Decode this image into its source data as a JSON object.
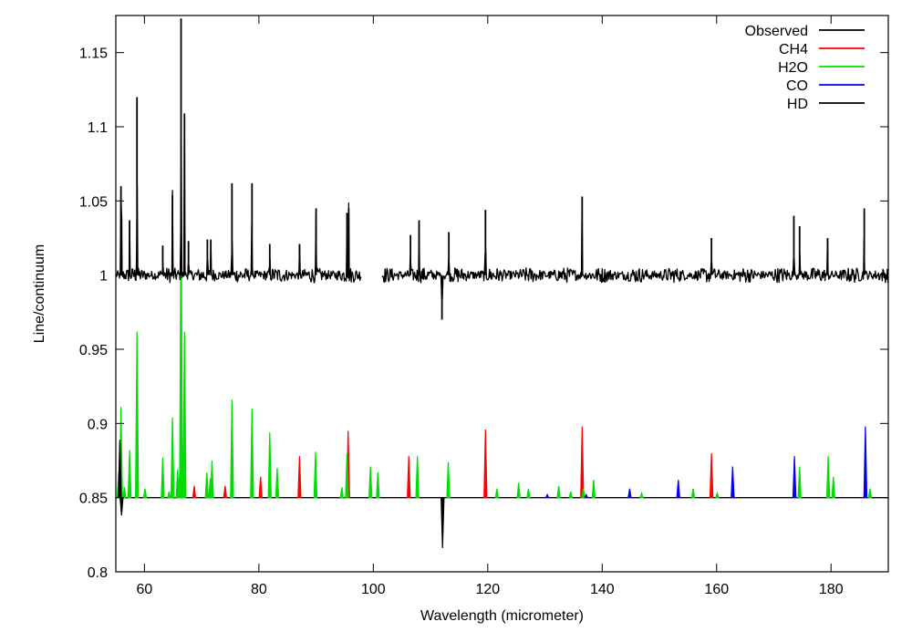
{
  "chart_data": {
    "type": "line",
    "xlabel": "Wavelength (micrometer)",
    "ylabel": "Line/continuum",
    "xlim": [
      55,
      190
    ],
    "ylim": [
      0.8,
      1.175
    ],
    "xticks": [
      60,
      80,
      100,
      120,
      140,
      160,
      180
    ],
    "xtick_labels": [
      "60",
      "80",
      "100",
      "120",
      "140",
      "160",
      "180"
    ],
    "yticks": [
      0.8,
      0.85,
      0.9,
      0.95,
      1.0,
      1.05,
      1.1,
      1.15
    ],
    "ytick_labels": [
      "0.8",
      "0.85",
      "0.9",
      "0.95",
      "1",
      "1.05",
      "1.1",
      "1.15"
    ],
    "grid": false,
    "legend_position": "top-right",
    "model_baseline": 0.85,
    "series": [
      {
        "name": "Observed",
        "color": "#000000",
        "kind": "spectrum",
        "baseline": 1.0,
        "noise_amplitude": 0.004,
        "segments": [
          [
            55,
            98
          ],
          [
            101.5,
            190
          ]
        ],
        "peaks": [
          [
            55.9,
            1.06
          ],
          [
            56.0,
            1.04
          ],
          [
            57.4,
            1.037
          ],
          [
            58.7,
            1.12
          ],
          [
            63.2,
            1.02
          ],
          [
            64.9,
            1.054
          ],
          [
            66.4,
            1.173
          ],
          [
            67.0,
            1.109
          ],
          [
            67.7,
            1.023
          ],
          [
            71.0,
            1.024
          ],
          [
            71.6,
            1.024
          ],
          [
            75.3,
            1.062
          ],
          [
            78.8,
            1.062
          ],
          [
            81.9,
            1.021
          ],
          [
            87.1,
            1.021
          ],
          [
            90.0,
            1.045
          ],
          [
            95.4,
            1.042
          ],
          [
            95.7,
            1.045
          ],
          [
            106.5,
            1.027
          ],
          [
            108.0,
            1.037
          ],
          [
            113.2,
            1.029
          ],
          [
            119.6,
            1.044
          ],
          [
            136.5,
            1.053
          ],
          [
            159.1,
            1.025
          ],
          [
            173.5,
            1.04
          ],
          [
            174.5,
            1.033
          ],
          [
            179.4,
            1.025
          ],
          [
            185.8,
            1.045
          ]
        ],
        "dips": [
          [
            112.0,
            0.97
          ]
        ]
      },
      {
        "name": "CH4",
        "color": "#ff0000",
        "kind": "lines",
        "lines": [
          [
            68.7,
            0.858
          ],
          [
            74.1,
            0.858
          ],
          [
            80.3,
            0.864
          ],
          [
            87.1,
            0.878
          ],
          [
            95.6,
            0.895
          ],
          [
            106.2,
            0.878
          ],
          [
            119.6,
            0.896
          ],
          [
            136.5,
            0.898
          ],
          [
            159.1,
            0.88
          ]
        ]
      },
      {
        "name": "H2O",
        "color": "#00dd00",
        "kind": "lines",
        "lines": [
          [
            55.5,
            0.867
          ],
          [
            55.9,
            0.911
          ],
          [
            56.5,
            0.857
          ],
          [
            57.4,
            0.882
          ],
          [
            58.7,
            0.962
          ],
          [
            60.1,
            0.856
          ],
          [
            63.2,
            0.877
          ],
          [
            64.3,
            0.854
          ],
          [
            64.9,
            0.904
          ],
          [
            65.8,
            0.869
          ],
          [
            66.2,
            0.87
          ],
          [
            66.4,
            1.053
          ],
          [
            67.0,
            0.962
          ],
          [
            70.9,
            0.867
          ],
          [
            71.5,
            0.863
          ],
          [
            71.8,
            0.875
          ],
          [
            75.3,
            0.916
          ],
          [
            78.8,
            0.91
          ],
          [
            81.9,
            0.894
          ],
          [
            83.2,
            0.87
          ],
          [
            89.9,
            0.881
          ],
          [
            94.5,
            0.857
          ],
          [
            95.4,
            0.88
          ],
          [
            99.5,
            0.871
          ],
          [
            100.8,
            0.867
          ],
          [
            107.7,
            0.878
          ],
          [
            113.1,
            0.874
          ],
          [
            121.6,
            0.856
          ],
          [
            125.4,
            0.86
          ],
          [
            127.1,
            0.856
          ],
          [
            132.4,
            0.858
          ],
          [
            134.5,
            0.854
          ],
          [
            136.7,
            0.856
          ],
          [
            138.5,
            0.862
          ],
          [
            146.9,
            0.853
          ],
          [
            155.9,
            0.856
          ],
          [
            160.1,
            0.853
          ],
          [
            174.5,
            0.871
          ],
          [
            179.5,
            0.878
          ],
          [
            180.4,
            0.864
          ],
          [
            186.8,
            0.856
          ]
        ]
      },
      {
        "name": "CO",
        "color": "#0000ee",
        "kind": "lines",
        "lines": [
          [
            130.4,
            0.852
          ],
          [
            137.2,
            0.852
          ],
          [
            144.8,
            0.856
          ],
          [
            153.3,
            0.862
          ],
          [
            162.8,
            0.871
          ],
          [
            173.6,
            0.878
          ],
          [
            186.0,
            0.898
          ]
        ]
      },
      {
        "name": "HD",
        "color": "#000000",
        "kind": "lines",
        "lines": [
          [
            55.7,
            0.889
          ],
          [
            56.0,
            0.838
          ],
          [
            112.1,
            0.816
          ]
        ]
      }
    ]
  }
}
